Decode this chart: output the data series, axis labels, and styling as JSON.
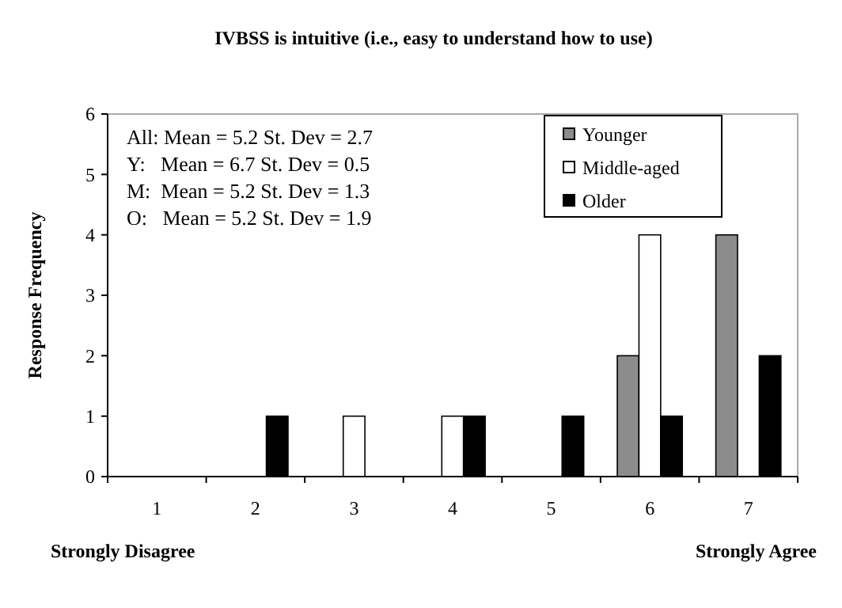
{
  "chart_data": {
    "type": "bar",
    "title": "IVBSS is intuitive (i.e., easy to understand how to use)",
    "ylabel": "Response Frequency",
    "categories": [
      "1",
      "2",
      "3",
      "4",
      "5",
      "6",
      "7"
    ],
    "series": [
      {
        "name": "Younger",
        "color": "#8c8c8c",
        "values": [
          0,
          0,
          0,
          0,
          0,
          2,
          4
        ]
      },
      {
        "name": "Middle-aged",
        "color": "#ffffff",
        "values": [
          0,
          0,
          1,
          1,
          0,
          4,
          0
        ]
      },
      {
        "name": "Older",
        "color": "#000000",
        "values": [
          0,
          1,
          0,
          1,
          1,
          1,
          2
        ]
      }
    ],
    "ylim": [
      0,
      6
    ],
    "yticks": [
      0,
      1,
      2,
      3,
      4,
      5,
      6
    ],
    "grid": false,
    "legend": "top right",
    "annotations": [
      "All: Mean = 5.2 St. Dev = 2.7",
      "Y:   Mean = 6.7 St. Dev = 0.5",
      "M:  Mean = 5.2 St. Dev = 1.3",
      "O:   Mean = 5.2 St. Dev = 1.9",
      "Strongly Disagree",
      "Strongly Agree"
    ]
  }
}
